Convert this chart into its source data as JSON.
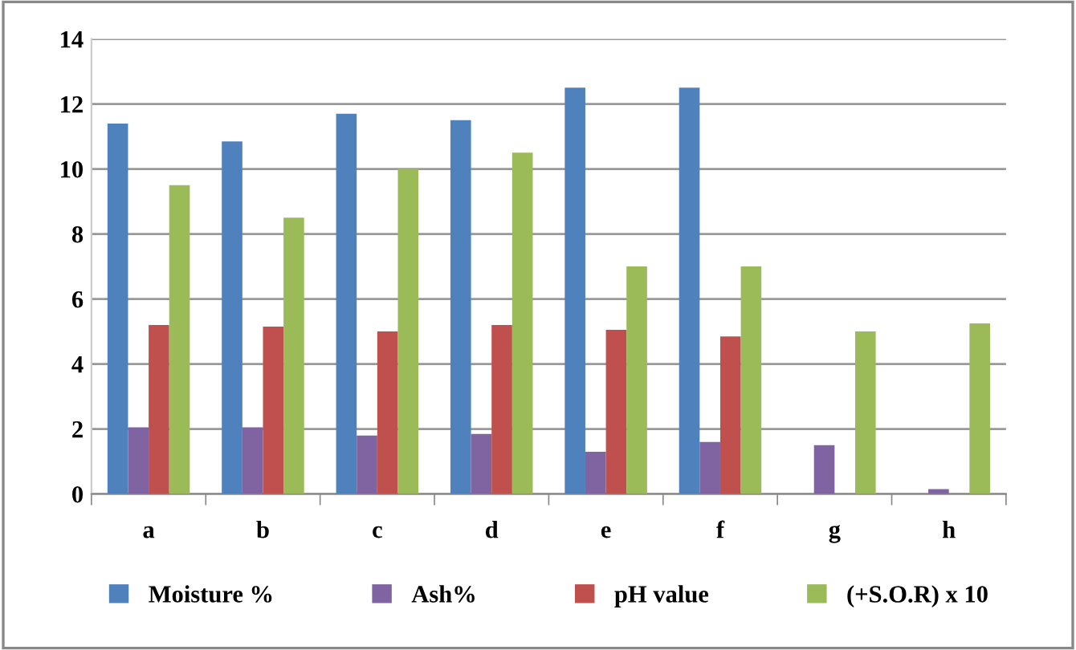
{
  "chart_data": {
    "type": "bar",
    "categories": [
      "a",
      "b",
      "c",
      "d",
      "e",
      "f",
      "g",
      "h"
    ],
    "series": [
      {
        "name": "Moisture %",
        "color": "#4f81bd",
        "values": [
          11.4,
          10.85,
          11.7,
          11.5,
          12.5,
          12.5,
          null,
          null
        ]
      },
      {
        "name": "Ash%",
        "color": "#8064a2",
        "values": [
          2.05,
          2.05,
          1.8,
          1.85,
          1.3,
          1.6,
          1.5,
          0.15
        ]
      },
      {
        "name": "pH value",
        "color": "#c0504d",
        "values": [
          5.2,
          5.15,
          5.0,
          5.2,
          5.05,
          4.85,
          null,
          null
        ]
      },
      {
        "name": "(+S.O.R) x 10",
        "color": "#9bbb59",
        "values": [
          9.5,
          8.5,
          10.0,
          10.5,
          7.0,
          7.0,
          5.0,
          5.25
        ]
      }
    ],
    "ylim": [
      0,
      14
    ],
    "yticks": [
      0,
      2,
      4,
      6,
      8,
      10,
      12,
      14
    ],
    "grid": "y",
    "legend": "bottom"
  }
}
